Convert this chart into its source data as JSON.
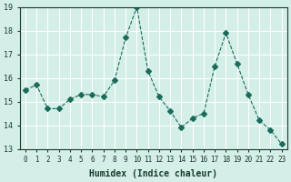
{
  "x": [
    0,
    1,
    2,
    3,
    4,
    5,
    6,
    7,
    8,
    9,
    10,
    11,
    12,
    13,
    14,
    15,
    16,
    17,
    18,
    19,
    20,
    21,
    22,
    23
  ],
  "y": [
    15.5,
    15.7,
    14.7,
    14.7,
    15.1,
    15.3,
    15.3,
    15.2,
    15.9,
    17.7,
    19.0,
    16.3,
    15.2,
    14.6,
    13.9,
    14.3,
    14.5,
    16.5,
    17.9,
    16.6,
    15.3,
    14.2,
    13.8,
    13.2
  ],
  "xlabel": "Humidex (Indice chaleur)",
  "ylabel": "",
  "xlim": [
    -0.5,
    23.5
  ],
  "ylim": [
    13,
    19
  ],
  "yticks": [
    13,
    14,
    15,
    16,
    17,
    18,
    19
  ],
  "xticks": [
    0,
    1,
    2,
    3,
    4,
    5,
    6,
    7,
    8,
    9,
    10,
    11,
    12,
    13,
    14,
    15,
    16,
    17,
    18,
    19,
    20,
    21,
    22,
    23
  ],
  "line_color": "#1a6b5a",
  "marker": "D",
  "marker_size": 3,
  "bg_color": "#d4eee8",
  "grid_color": "#ffffff",
  "title_color": "#1a3a2a",
  "label_color": "#1a3a2a",
  "tick_color": "#1a3a2a"
}
